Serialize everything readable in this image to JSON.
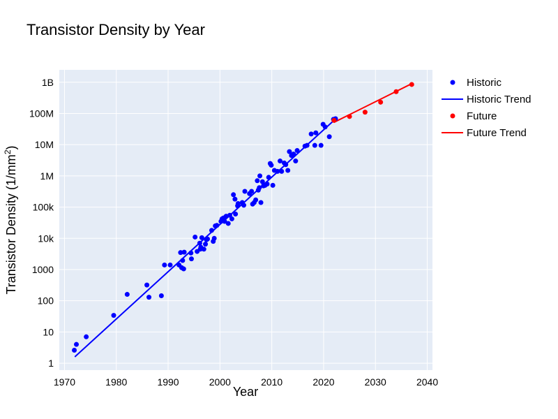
{
  "chart_data": {
    "type": "scatter",
    "title": "Transistor Density by Year",
    "xlabel": "Year",
    "ylabel": "Transistor Density (1/mm²)",
    "ylabel_parts": {
      "main": "Transistor Density (1/mm",
      "sup": "2",
      "close": ")"
    },
    "xlim": [
      1969,
      2041
    ],
    "ylim": [
      0.6,
      2500000000
    ],
    "yscale": "log",
    "grid": true,
    "legend_position": "top-right",
    "x_ticks": [
      1970,
      1980,
      1990,
      2000,
      2010,
      2020,
      2030,
      2040
    ],
    "x_tick_labels": [
      "1970",
      "1980",
      "1990",
      "2000",
      "2010",
      "2020",
      "2030",
      "2040"
    ],
    "y_ticks": [
      1,
      10,
      100,
      1000,
      10000,
      100000,
      1000000,
      10000000,
      100000000,
      1000000000
    ],
    "y_tick_labels": [
      "1",
      "10",
      "100",
      "1000",
      "10k",
      "100k",
      "1M",
      "10M",
      "100M",
      "1B"
    ],
    "colors": {
      "historic": "#0000ff",
      "future": "#ff0000",
      "plot_bg": "#e5ecf6",
      "grid": "#ffffff"
    },
    "legend": [
      "Historic",
      "Historic Trend",
      "Future",
      "Future Trend"
    ],
    "series": [
      {
        "name": "Historic",
        "kind": "points",
        "color": "#0000ff",
        "points": [
          [
            1971.9,
            2.6
          ],
          [
            1972.3,
            4.0
          ],
          [
            1974.2,
            7.0
          ],
          [
            1979.5,
            34
          ],
          [
            1982.1,
            160
          ],
          [
            1985.9,
            320
          ],
          [
            1986.3,
            130
          ],
          [
            1988.7,
            145
          ],
          [
            1989.3,
            1400
          ],
          [
            1990.4,
            1400
          ],
          [
            1992.1,
            1400
          ],
          [
            1992.4,
            3500
          ],
          [
            1992.6,
            1150
          ],
          [
            1992.8,
            1950
          ],
          [
            1993.0,
            1050
          ],
          [
            1993.1,
            3600
          ],
          [
            1994.4,
            3400
          ],
          [
            1994.5,
            2200
          ],
          [
            1995.2,
            11000
          ],
          [
            1995.6,
            3800
          ],
          [
            1996.1,
            7000
          ],
          [
            1996.2,
            4500
          ],
          [
            1996.3,
            5200
          ],
          [
            1996.5,
            10500
          ],
          [
            1996.9,
            4500
          ],
          [
            1997.2,
            6500
          ],
          [
            1997.4,
            9000
          ],
          [
            1997.6,
            9500
          ],
          [
            1998.4,
            18000
          ],
          [
            1998.7,
            8000
          ],
          [
            1998.9,
            10000
          ],
          [
            1999.1,
            25000
          ],
          [
            1999.4,
            26000
          ],
          [
            2000.2,
            35000
          ],
          [
            2000.4,
            42000
          ],
          [
            2000.7,
            45000
          ],
          [
            2000.9,
            35000
          ],
          [
            2001.2,
            51000
          ],
          [
            2001.6,
            30000
          ],
          [
            2001.9,
            55000
          ],
          [
            2002.3,
            42000
          ],
          [
            2002.6,
            250000
          ],
          [
            2002.9,
            180000
          ],
          [
            2003.0,
            60000
          ],
          [
            2003.4,
            110000
          ],
          [
            2003.5,
            130000
          ],
          [
            2004.3,
            140000
          ],
          [
            2004.6,
            115000
          ],
          [
            2004.8,
            320000
          ],
          [
            2005.7,
            270000
          ],
          [
            2006.1,
            320000
          ],
          [
            2006.3,
            125000
          ],
          [
            2006.6,
            140000
          ],
          [
            2006.9,
            170000
          ],
          [
            2007.2,
            700000
          ],
          [
            2007.4,
            350000
          ],
          [
            2007.6,
            420000
          ],
          [
            2007.7,
            1000000
          ],
          [
            2007.9,
            140000
          ],
          [
            2008.2,
            650000
          ],
          [
            2008.4,
            480000
          ],
          [
            2008.7,
            500000
          ],
          [
            2009.1,
            550000
          ],
          [
            2009.4,
            900000
          ],
          [
            2009.7,
            2500000
          ],
          [
            2009.9,
            2200000
          ],
          [
            2010.2,
            500000
          ],
          [
            2010.5,
            1500000
          ],
          [
            2011.1,
            1400000
          ],
          [
            2011.6,
            3000000
          ],
          [
            2011.9,
            1400000
          ],
          [
            2012.4,
            2600000
          ],
          [
            2012.7,
            2300000
          ],
          [
            2013.1,
            1500000
          ],
          [
            2013.4,
            6000000
          ],
          [
            2013.8,
            4500000
          ],
          [
            2014.2,
            5000000
          ],
          [
            2014.6,
            3000000
          ],
          [
            2014.9,
            6500000
          ],
          [
            2016.4,
            9000000
          ],
          [
            2016.8,
            9500000
          ],
          [
            2017.6,
            22000000
          ],
          [
            2018.3,
            9500000
          ],
          [
            2018.5,
            24000000
          ],
          [
            2019.5,
            9500000
          ],
          [
            2019.9,
            45000000
          ],
          [
            2020.3,
            37000000
          ],
          [
            2021.1,
            18000000
          ],
          [
            2021.9,
            65000000
          ],
          [
            2022.3,
            68000000
          ]
        ]
      },
      {
        "name": "Historic Trend",
        "kind": "line",
        "color": "#0000ff",
        "points": [
          [
            1972.0,
            1.6
          ],
          [
            2022.0,
            60000000
          ]
        ]
      },
      {
        "name": "Future",
        "kind": "points",
        "color": "#ff0000",
        "points": [
          [
            2022.0,
            60000000
          ],
          [
            2025.0,
            80000000
          ],
          [
            2028.0,
            110000000
          ],
          [
            2031.0,
            230000000
          ],
          [
            2034.0,
            500000000
          ],
          [
            2037.0,
            850000000
          ]
        ]
      },
      {
        "name": "Future Trend",
        "kind": "line",
        "color": "#ff0000",
        "points": [
          [
            2022.0,
            52000000
          ],
          [
            2037.0,
            900000000
          ]
        ]
      }
    ]
  }
}
